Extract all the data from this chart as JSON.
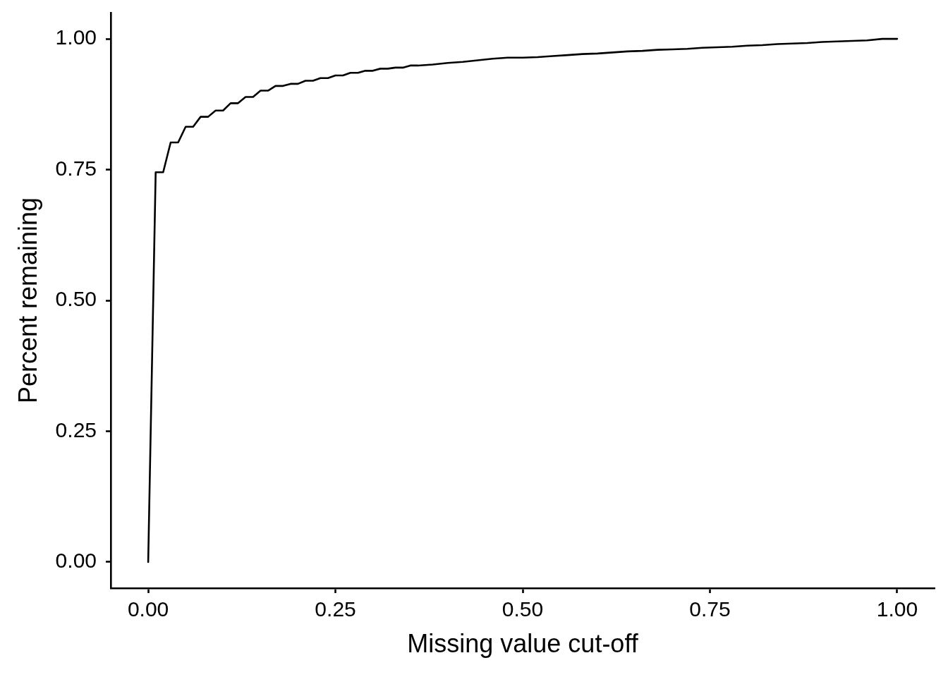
{
  "chart_data": {
    "type": "line",
    "xlabel": "Missing value cut-off",
    "ylabel": "Percent remaining",
    "color": "#000000",
    "x": [
      0,
      0.01,
      0.02,
      0.03,
      0.04,
      0.05,
      0.06,
      0.07,
      0.08,
      0.09,
      0.1,
      0.11,
      0.12,
      0.13,
      0.14,
      0.15,
      0.16,
      0.17,
      0.18,
      0.19,
      0.2,
      0.21,
      0.22,
      0.23,
      0.24,
      0.25,
      0.26,
      0.27,
      0.28,
      0.29,
      0.3,
      0.31,
      0.32,
      0.33,
      0.34,
      0.35,
      0.36,
      0.38,
      0.4,
      0.42,
      0.44,
      0.46,
      0.48,
      0.5,
      0.52,
      0.54,
      0.56,
      0.58,
      0.6,
      0.62,
      0.64,
      0.66,
      0.68,
      0.7,
      0.72,
      0.74,
      0.76,
      0.78,
      0.8,
      0.82,
      0.84,
      0.86,
      0.88,
      0.9,
      0.92,
      0.94,
      0.96,
      0.98,
      1.0
    ],
    "values": [
      0,
      0.745,
      0.745,
      0.802,
      0.802,
      0.832,
      0.832,
      0.851,
      0.851,
      0.863,
      0.863,
      0.877,
      0.877,
      0.889,
      0.889,
      0.901,
      0.901,
      0.91,
      0.91,
      0.914,
      0.914,
      0.92,
      0.92,
      0.925,
      0.925,
      0.93,
      0.93,
      0.935,
      0.935,
      0.939,
      0.939,
      0.943,
      0.943,
      0.945,
      0.945,
      0.949,
      0.949,
      0.951,
      0.954,
      0.956,
      0.959,
      0.962,
      0.964,
      0.964,
      0.965,
      0.967,
      0.969,
      0.971,
      0.972,
      0.974,
      0.976,
      0.977,
      0.979,
      0.98,
      0.981,
      0.983,
      0.984,
      0.985,
      0.987,
      0.988,
      0.99,
      0.991,
      0.992,
      0.994,
      0.995,
      0.996,
      0.997,
      1.0,
      1.0
    ],
    "xlim": [
      -0.05,
      1.05
    ],
    "ylim": [
      -0.05,
      1.05
    ],
    "xticks": [
      {
        "value": 0,
        "label": "0.00"
      },
      {
        "value": 0.25,
        "label": "0.25"
      },
      {
        "value": 0.5,
        "label": "0.50"
      },
      {
        "value": 0.75,
        "label": "0.75"
      },
      {
        "value": 1,
        "label": "1.00"
      }
    ],
    "yticks": [
      {
        "value": 0,
        "label": "0.00"
      },
      {
        "value": 0.25,
        "label": "0.25"
      },
      {
        "value": 0.5,
        "label": "0.50"
      },
      {
        "value": 0.75,
        "label": "0.75"
      },
      {
        "value": 1,
        "label": "1.00"
      }
    ]
  }
}
